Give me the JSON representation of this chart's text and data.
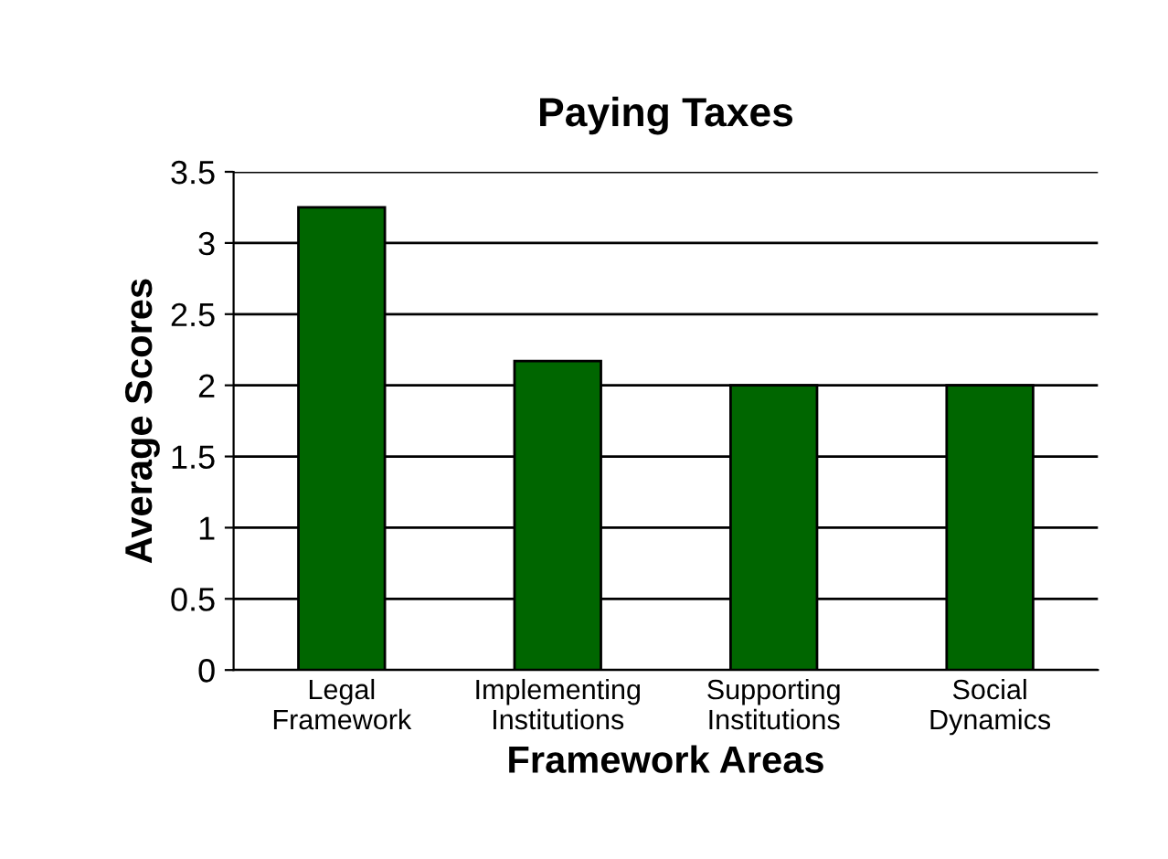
{
  "chart_data": {
    "type": "bar",
    "title": "Paying Taxes",
    "xlabel": "Framework Areas",
    "ylabel": "Average Scores",
    "categories": [
      "Legal\nFramework",
      "Implementing\nInstitutions",
      "Supporting\nInstitutions",
      "Social\nDynamics"
    ],
    "values": [
      3.25,
      2.17,
      2.0,
      2.0
    ],
    "color": "#006600",
    "ylim": [
      0,
      3.5
    ],
    "yticks": [
      0,
      0.5,
      1,
      1.5,
      2,
      2.5,
      3,
      3.5
    ],
    "grid": "y"
  }
}
